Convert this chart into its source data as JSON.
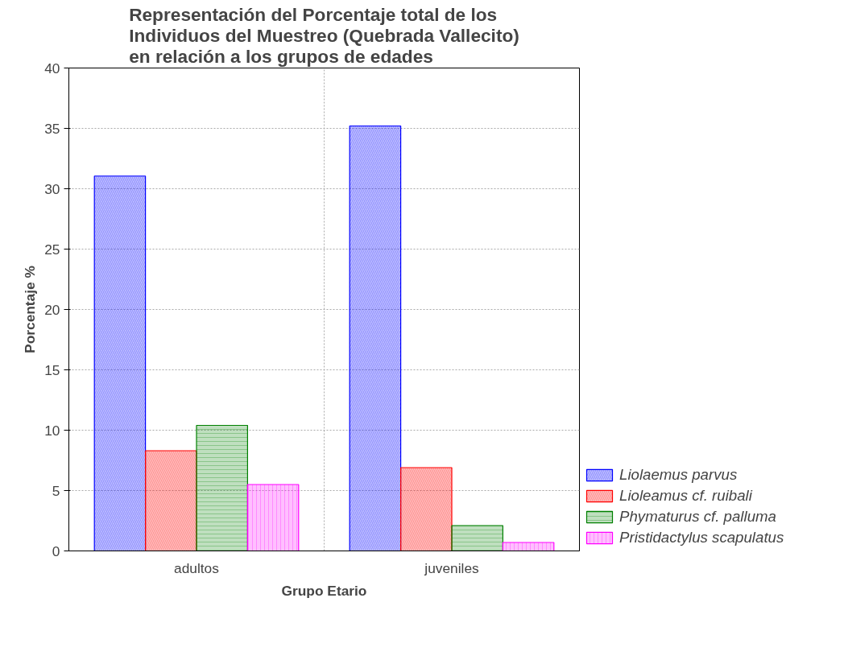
{
  "chart_data": {
    "type": "bar",
    "title": "Representación del Porcentaje total de  los\nIndividuos del Muestreo (Quebrada Vallecito)\nen relación a los grupos de edades",
    "xlabel": "Grupo Etario",
    "ylabel": "Porcentaje %",
    "categories": [
      "adultos",
      "juveniles"
    ],
    "series": [
      {
        "name": "Liolaemus parvus",
        "color": "#0000ff",
        "values": [
          31.05,
          35.2
        ]
      },
      {
        "name": "Lioleamus cf. ruibali",
        "color": "#ff0000",
        "values": [
          8.3,
          6.9
        ]
      },
      {
        "name": "Phymaturus cf. palluma",
        "color": "#008000",
        "values": [
          10.4,
          2.1
        ]
      },
      {
        "name": "Pristidactylus scapulatus",
        "color": "#ff00ff",
        "values": [
          5.5,
          0.7
        ]
      }
    ],
    "ylim": [
      0,
      40
    ],
    "yticks": [
      0,
      5,
      10,
      15,
      20,
      25,
      30,
      35,
      40
    ],
    "grid": true,
    "legend": "bottom right"
  }
}
